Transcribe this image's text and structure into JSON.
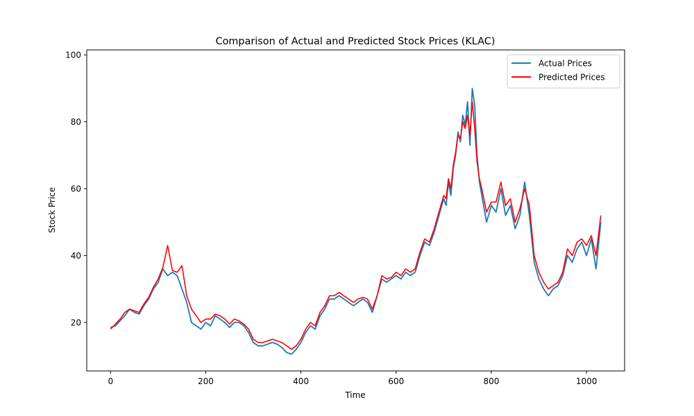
{
  "chart_data": {
    "type": "line",
    "title": "Comparison of Actual and Predicted Stock Prices (KLAC)",
    "xlabel": "Time",
    "ylabel": "Stock Price",
    "xlim": [
      -50,
      1080
    ],
    "ylim": [
      5.5,
      101.5
    ],
    "x_ticks": [
      0,
      200,
      400,
      600,
      800,
      1000
    ],
    "y_ticks": [
      20,
      40,
      60,
      80,
      100
    ],
    "grid": false,
    "legend_position": "top-right",
    "colors": {
      "actual": "#1f77b4",
      "predicted": "#ff0000"
    },
    "series": [
      {
        "name": "Actual Prices",
        "key": "actual",
        "x": [
          0,
          10,
          20,
          30,
          40,
          50,
          60,
          70,
          80,
          90,
          100,
          110,
          120,
          130,
          140,
          150,
          160,
          170,
          180,
          190,
          200,
          210,
          220,
          230,
          240,
          250,
          260,
          270,
          280,
          290,
          300,
          310,
          320,
          330,
          340,
          350,
          360,
          370,
          380,
          390,
          400,
          410,
          420,
          430,
          440,
          450,
          460,
          470,
          480,
          490,
          500,
          510,
          520,
          530,
          540,
          550,
          560,
          570,
          580,
          590,
          600,
          610,
          620,
          630,
          640,
          650,
          660,
          670,
          680,
          690,
          700,
          705,
          710,
          715,
          720,
          725,
          730,
          735,
          740,
          745,
          750,
          755,
          760,
          765,
          770,
          775,
          780,
          790,
          800,
          810,
          820,
          830,
          840,
          850,
          860,
          870,
          880,
          890,
          900,
          910,
          920,
          930,
          940,
          950,
          960,
          970,
          980,
          990,
          1000,
          1010,
          1020,
          1030
        ],
        "values": [
          18.5,
          19,
          20.5,
          22,
          24,
          23,
          22.5,
          25,
          27,
          30,
          32,
          36,
          34,
          35,
          34,
          30,
          26,
          20,
          19,
          18,
          20,
          19,
          22,
          21,
          20,
          18.5,
          20,
          20,
          19,
          17,
          14,
          13,
          13,
          13.5,
          14,
          13.5,
          12.5,
          11,
          10.5,
          12,
          14,
          17,
          19,
          18,
          22,
          24,
          27,
          27,
          28,
          27,
          26,
          25,
          26,
          27,
          26,
          23,
          28,
          33,
          32,
          33,
          34,
          33,
          35,
          34,
          35,
          40,
          44,
          43,
          47,
          52,
          57,
          55,
          62,
          58,
          66,
          70,
          77,
          74,
          82,
          79,
          86,
          73,
          90,
          85,
          70,
          62,
          58,
          50,
          55,
          53,
          60,
          52,
          55,
          48,
          52,
          62,
          52,
          38,
          33,
          30,
          28,
          30,
          31,
          34,
          40,
          38,
          42,
          44,
          40,
          45,
          36,
          50
        ]
      },
      {
        "name": "Predicted Prices",
        "key": "predicted",
        "x": [
          0,
          10,
          20,
          30,
          40,
          50,
          60,
          70,
          80,
          90,
          100,
          110,
          120,
          130,
          140,
          150,
          160,
          170,
          180,
          190,
          200,
          210,
          220,
          230,
          240,
          250,
          260,
          270,
          280,
          290,
          300,
          310,
          320,
          330,
          340,
          350,
          360,
          370,
          380,
          390,
          400,
          410,
          420,
          430,
          440,
          450,
          460,
          470,
          480,
          490,
          500,
          510,
          520,
          530,
          540,
          550,
          560,
          570,
          580,
          590,
          600,
          610,
          620,
          630,
          640,
          650,
          660,
          670,
          680,
          690,
          700,
          705,
          710,
          715,
          720,
          725,
          730,
          735,
          740,
          745,
          750,
          755,
          760,
          765,
          770,
          775,
          780,
          790,
          800,
          810,
          820,
          830,
          840,
          850,
          860,
          870,
          880,
          890,
          900,
          910,
          920,
          930,
          940,
          950,
          960,
          970,
          980,
          990,
          1000,
          1010,
          1020,
          1030
        ],
        "values": [
          18,
          19.5,
          21,
          23,
          24,
          23.5,
          23,
          25.5,
          27.5,
          30.5,
          33,
          36.5,
          43,
          35.5,
          35,
          37,
          28,
          24,
          22,
          20,
          21,
          21,
          22.5,
          22,
          21,
          19.5,
          21,
          20.5,
          19.5,
          18,
          15,
          14,
          14,
          14.5,
          15,
          14.5,
          14,
          13,
          12,
          13,
          15,
          18,
          20,
          19,
          23,
          25,
          28,
          28,
          29,
          28,
          27,
          26,
          27,
          27.5,
          27,
          24,
          28,
          34,
          33,
          33.5,
          35,
          34,
          36,
          35,
          36,
          41,
          45,
          44,
          48,
          53,
          58,
          57,
          63,
          60,
          67,
          71,
          76,
          75,
          80,
          78,
          82,
          76,
          86,
          78,
          68,
          63,
          60,
          53,
          56,
          56,
          62,
          55,
          57,
          50,
          54,
          60,
          55,
          40,
          35,
          32,
          30,
          31,
          32,
          35,
          42,
          40,
          44,
          45,
          43,
          46,
          40,
          52
        ]
      }
    ]
  }
}
